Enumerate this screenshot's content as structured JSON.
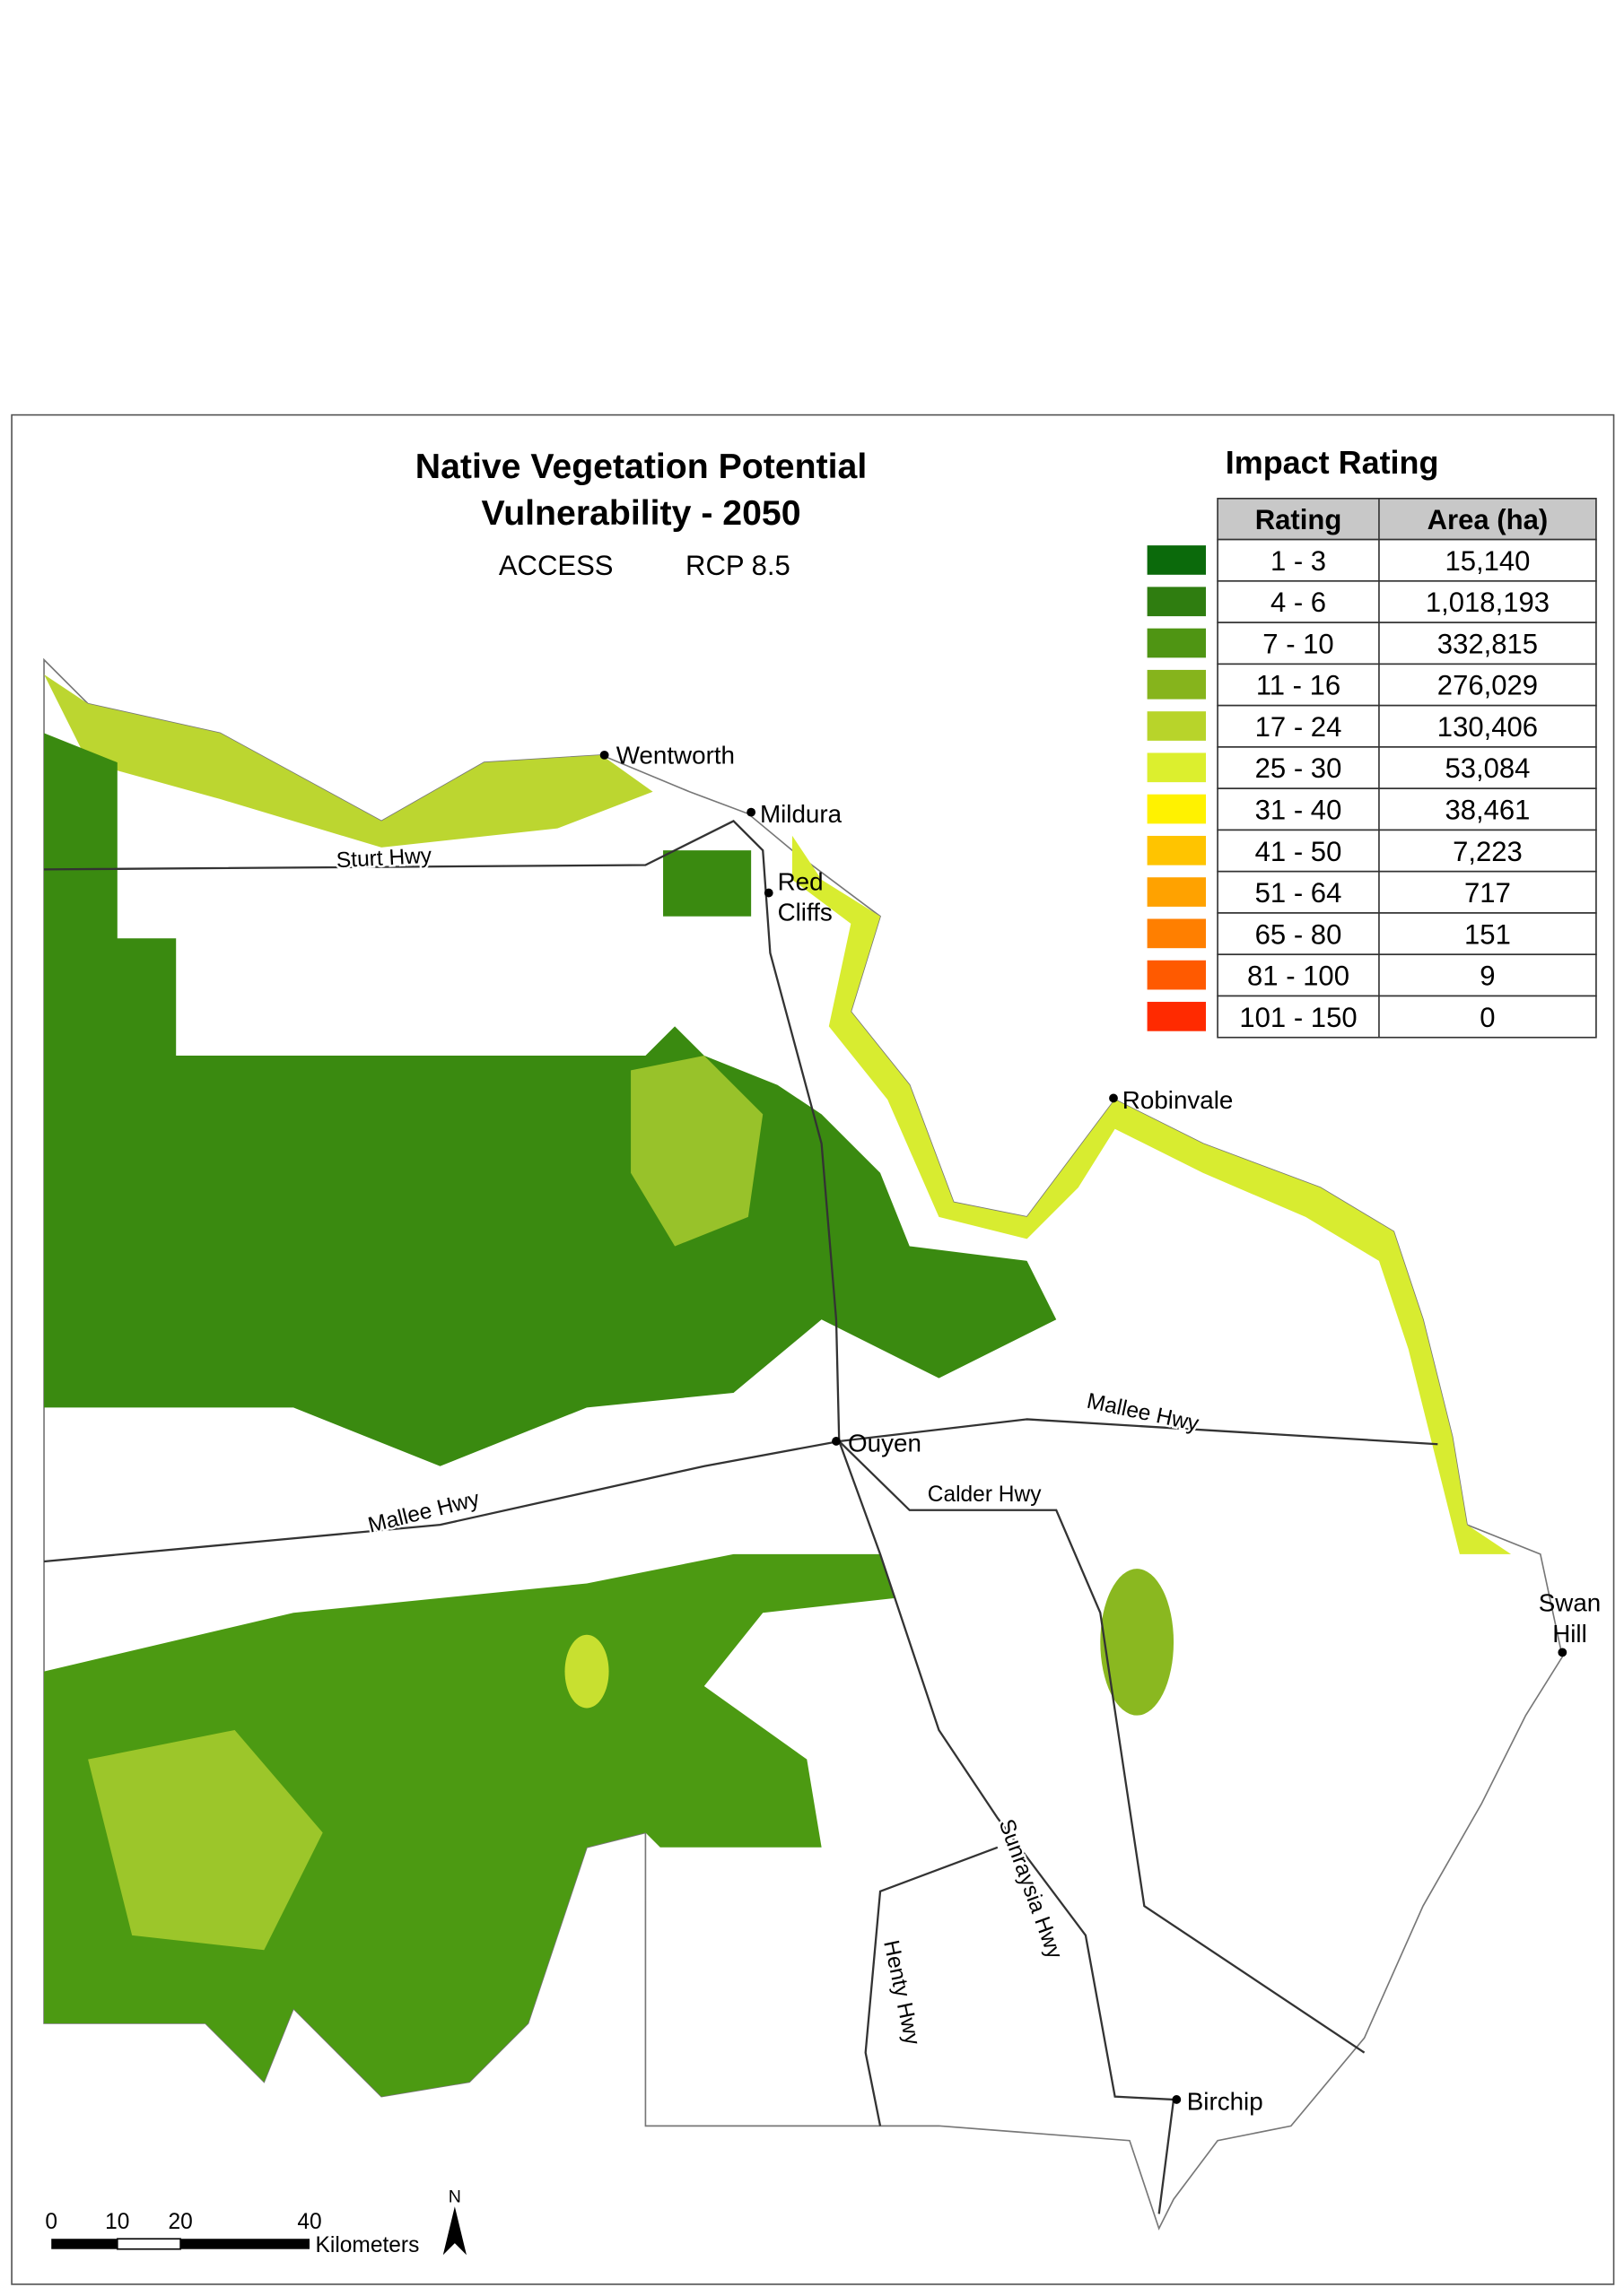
{
  "title": [
    "Native Vegetation Potential",
    "Vulnerability - 2050"
  ],
  "model": "ACCESS",
  "scenario": "RCP 8.5",
  "legend": {
    "title": "Impact Rating",
    "headers": [
      "Rating",
      "Area (ha)"
    ],
    "rows": [
      {
        "rating": "1 - 3",
        "area": "15,140",
        "color": "#0b6a0b"
      },
      {
        "rating": "4 - 6",
        "area": "1,018,193",
        "color": "#2f7d10"
      },
      {
        "rating": "7 - 10",
        "area": "332,815",
        "color": "#4f9513"
      },
      {
        "rating": "11 - 16",
        "area": "276,029",
        "color": "#86b41c"
      },
      {
        "rating": "17 - 24",
        "area": "130,406",
        "color": "#b8d42a"
      },
      {
        "rating": "25 - 30",
        "area": "53,084",
        "color": "#dcef2e"
      },
      {
        "rating": "31 - 40",
        "area": "38,461",
        "color": "#fff200"
      },
      {
        "rating": "41 - 50",
        "area": "7,223",
        "color": "#ffc400"
      },
      {
        "rating": "51 - 64",
        "area": "717",
        "color": "#ffa200"
      },
      {
        "rating": "65 - 80",
        "area": "151",
        "color": "#ff7f00"
      },
      {
        "rating": "81 - 100",
        "area": "9",
        "color": "#ff5a00"
      },
      {
        "rating": "101 - 150",
        "area": "0",
        "color": "#ff2a00"
      }
    ]
  },
  "places": [
    {
      "lines": [
        "Wentworth"
      ]
    },
    {
      "lines": [
        "Mildura"
      ]
    },
    {
      "lines": [
        "Red",
        "Cliffs"
      ]
    },
    {
      "lines": [
        "Robinvale"
      ]
    },
    {
      "lines": [
        "Ouyen"
      ]
    },
    {
      "lines": [
        "Swan",
        "Hill"
      ]
    },
    {
      "lines": [
        "Birchip"
      ]
    }
  ],
  "roads": [
    "Sturt Hwy",
    "Mallee Hwy",
    "Mallee Hwy",
    "Calder Hwy",
    "Sunraysia Hwy",
    "Henty Hwy"
  ],
  "scale_bar": {
    "ticks": [
      "0",
      "10",
      "20",
      "40"
    ],
    "unit": "Kilometers"
  },
  "north": "N"
}
